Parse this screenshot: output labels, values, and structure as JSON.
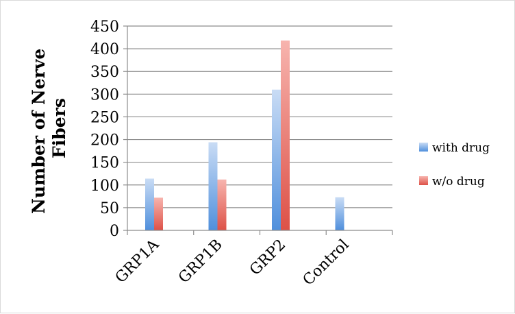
{
  "chart_data": {
    "type": "bar",
    "title": "",
    "xlabel": "",
    "ylabel": "Number of Nerve Fibers",
    "ylabel_lines": [
      "Number of Nerve",
      "Fibers"
    ],
    "categories": [
      "GRP1A",
      "GRP1B",
      "GRP2",
      "Control"
    ],
    "series": [
      {
        "name": "with drug",
        "values": [
          114,
          194,
          310,
          73
        ]
      },
      {
        "name": "w/o drug",
        "values": [
          72,
          112,
          418,
          0
        ]
      }
    ],
    "ylim": [
      0,
      450
    ],
    "yticks": [
      0,
      50,
      100,
      150,
      200,
      250,
      300,
      350,
      400,
      450
    ],
    "grid": true,
    "legend_position": "right",
    "colors": {
      "with drug": "#5b9bd5",
      "w/o drug": "#e05c5c",
      "grid": "#8c8c8c",
      "axis": "#8c8c8c"
    }
  }
}
